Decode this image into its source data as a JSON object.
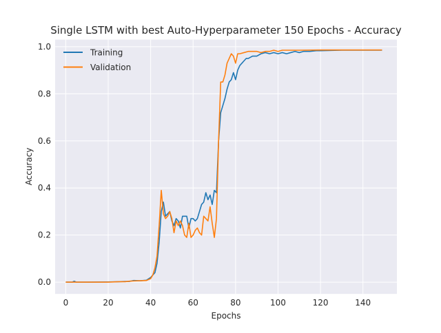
{
  "chart_data": {
    "type": "line",
    "title": "Single LSTM with best Auto-Hyperparameter 150 Epochs - Accuracy",
    "xlabel": "Epochs",
    "ylabel": "Accuracy",
    "xlim": [
      -5,
      156
    ],
    "ylim": [
      -0.05,
      1.03
    ],
    "xticks": [
      0,
      20,
      40,
      60,
      80,
      100,
      120,
      140
    ],
    "yticks": [
      0.0,
      0.2,
      0.4,
      0.6,
      0.8,
      1.0
    ],
    "ytick_labels": [
      "0.0",
      "0.2",
      "0.4",
      "0.6",
      "0.8",
      "1.0"
    ],
    "grid": true,
    "legend_position": "top-left",
    "series": [
      {
        "name": "Training",
        "color": "#1f77b4",
        "points": [
          [
            0,
            0.0
          ],
          [
            3,
            0.0
          ],
          [
            4,
            0.004
          ],
          [
            5,
            0.0
          ],
          [
            10,
            0.0
          ],
          [
            20,
            0.001
          ],
          [
            25,
            0.002
          ],
          [
            28,
            0.003
          ],
          [
            30,
            0.003
          ],
          [
            32,
            0.007
          ],
          [
            35,
            0.006
          ],
          [
            38,
            0.008
          ],
          [
            40,
            0.02
          ],
          [
            42,
            0.04
          ],
          [
            43,
            0.08
          ],
          [
            44,
            0.17
          ],
          [
            45,
            0.3
          ],
          [
            46,
            0.34
          ],
          [
            47,
            0.28
          ],
          [
            48,
            0.29
          ],
          [
            49,
            0.3
          ],
          [
            50,
            0.26
          ],
          [
            51,
            0.24
          ],
          [
            52,
            0.27
          ],
          [
            53,
            0.26
          ],
          [
            54,
            0.23
          ],
          [
            55,
            0.28
          ],
          [
            56,
            0.28
          ],
          [
            57,
            0.28
          ],
          [
            58,
            0.23
          ],
          [
            59,
            0.27
          ],
          [
            60,
            0.27
          ],
          [
            61,
            0.26
          ],
          [
            62,
            0.27
          ],
          [
            63,
            0.3
          ],
          [
            64,
            0.33
          ],
          [
            65,
            0.34
          ],
          [
            66,
            0.38
          ],
          [
            67,
            0.35
          ],
          [
            68,
            0.37
          ],
          [
            69,
            0.33
          ],
          [
            70,
            0.39
          ],
          [
            71,
            0.38
          ],
          [
            72,
            0.6
          ],
          [
            73,
            0.72
          ],
          [
            74,
            0.75
          ],
          [
            75,
            0.78
          ],
          [
            76,
            0.82
          ],
          [
            77,
            0.85
          ],
          [
            78,
            0.86
          ],
          [
            79,
            0.89
          ],
          [
            80,
            0.86
          ],
          [
            81,
            0.9
          ],
          [
            82,
            0.92
          ],
          [
            83,
            0.93
          ],
          [
            84,
            0.94
          ],
          [
            85,
            0.95
          ],
          [
            86,
            0.95
          ],
          [
            88,
            0.96
          ],
          [
            90,
            0.96
          ],
          [
            92,
            0.97
          ],
          [
            94,
            0.975
          ],
          [
            96,
            0.97
          ],
          [
            98,
            0.975
          ],
          [
            100,
            0.97
          ],
          [
            102,
            0.975
          ],
          [
            104,
            0.97
          ],
          [
            106,
            0.975
          ],
          [
            108,
            0.98
          ],
          [
            110,
            0.975
          ],
          [
            112,
            0.98
          ],
          [
            115,
            0.98
          ],
          [
            118,
            0.983
          ],
          [
            120,
            0.983
          ],
          [
            125,
            0.984
          ],
          [
            130,
            0.985
          ],
          [
            140,
            0.985
          ],
          [
            149,
            0.985
          ]
        ]
      },
      {
        "name": "Validation",
        "color": "#ff7f0e",
        "points": [
          [
            0,
            0.0
          ],
          [
            10,
            0.0
          ],
          [
            20,
            0.0
          ],
          [
            25,
            0.002
          ],
          [
            28,
            0.002
          ],
          [
            30,
            0.004
          ],
          [
            32,
            0.005
          ],
          [
            35,
            0.006
          ],
          [
            38,
            0.007
          ],
          [
            40,
            0.015
          ],
          [
            41,
            0.03
          ],
          [
            42,
            0.06
          ],
          [
            43,
            0.11
          ],
          [
            44,
            0.24
          ],
          [
            45,
            0.39
          ],
          [
            46,
            0.29
          ],
          [
            47,
            0.27
          ],
          [
            48,
            0.28
          ],
          [
            49,
            0.3
          ],
          [
            50,
            0.27
          ],
          [
            51,
            0.21
          ],
          [
            52,
            0.26
          ],
          [
            53,
            0.24
          ],
          [
            54,
            0.26
          ],
          [
            55,
            0.24
          ],
          [
            56,
            0.2
          ],
          [
            57,
            0.19
          ],
          [
            58,
            0.25
          ],
          [
            59,
            0.19
          ],
          [
            60,
            0.2
          ],
          [
            61,
            0.22
          ],
          [
            62,
            0.23
          ],
          [
            63,
            0.21
          ],
          [
            64,
            0.2
          ],
          [
            65,
            0.28
          ],
          [
            66,
            0.27
          ],
          [
            67,
            0.26
          ],
          [
            68,
            0.32
          ],
          [
            69,
            0.25
          ],
          [
            70,
            0.19
          ],
          [
            71,
            0.27
          ],
          [
            72,
            0.6
          ],
          [
            73,
            0.85
          ],
          [
            74,
            0.85
          ],
          [
            75,
            0.88
          ],
          [
            76,
            0.93
          ],
          [
            77,
            0.95
          ],
          [
            78,
            0.97
          ],
          [
            79,
            0.96
          ],
          [
            80,
            0.93
          ],
          [
            81,
            0.97
          ],
          [
            82,
            0.97
          ],
          [
            84,
            0.975
          ],
          [
            86,
            0.98
          ],
          [
            88,
            0.98
          ],
          [
            90,
            0.98
          ],
          [
            92,
            0.975
          ],
          [
            94,
            0.98
          ],
          [
            96,
            0.98
          ],
          [
            98,
            0.985
          ],
          [
            100,
            0.98
          ],
          [
            102,
            0.985
          ],
          [
            105,
            0.985
          ],
          [
            110,
            0.985
          ],
          [
            120,
            0.986
          ],
          [
            130,
            0.986
          ],
          [
            140,
            0.986
          ],
          [
            149,
            0.986
          ]
        ]
      }
    ]
  }
}
